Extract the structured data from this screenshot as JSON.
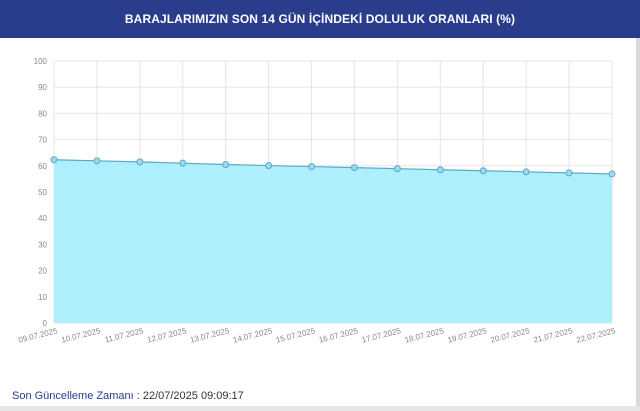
{
  "header": {
    "title": "BARAJLARIMIZIN SON 14 GÜN İÇİNDEKİ DOLULUK ORANLARI (%)"
  },
  "footer": {
    "label": "Son Güncelleme Zamanı",
    "separator": " : ",
    "value": "22/07/2025 09:09:17"
  },
  "chart_data": {
    "type": "area",
    "title": "BARAJLARIMIZIN SON 14 GÜN İÇİNDEKİ DOLULUK ORANLARI (%)",
    "categories": [
      "09.07.2025",
      "10.07.2025",
      "11.07.2025",
      "12.07.2025",
      "13.07.2025",
      "14.07.2025",
      "15.07.2025",
      "16.07.2025",
      "17.07.2025",
      "18.07.2025",
      "19.07.2025",
      "20.07.2025",
      "21.07.2025",
      "22.07.2025"
    ],
    "series": [
      {
        "values": [
          62.3,
          61.9,
          61.5,
          61.0,
          60.5,
          60.1,
          59.7,
          59.3,
          58.9,
          58.5,
          58.1,
          57.7,
          57.3,
          56.9
        ]
      }
    ],
    "yticks": [
      0,
      10,
      20,
      30,
      40,
      50,
      60,
      70,
      80,
      90,
      100
    ],
    "ylim": [
      0,
      100
    ],
    "grid": true,
    "colors": {
      "fill": "#adeffd",
      "line": "#5aa9c9",
      "point": "#9fd8ee",
      "grid": "#e5e5e5"
    }
  }
}
